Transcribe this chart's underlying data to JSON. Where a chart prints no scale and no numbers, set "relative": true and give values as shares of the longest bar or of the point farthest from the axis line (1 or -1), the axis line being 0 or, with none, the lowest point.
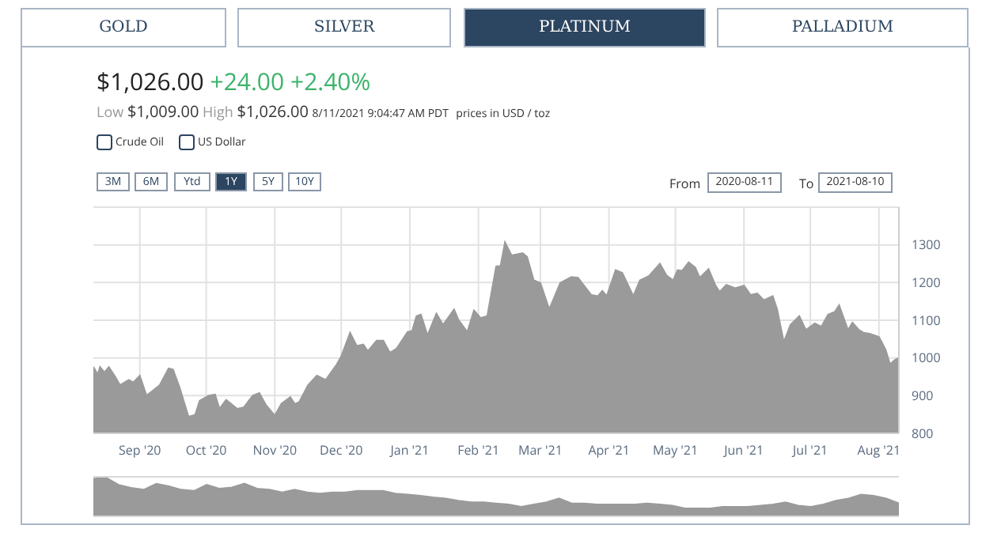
{
  "chart_data": [
    {
      "type": "area",
      "color": "#9a9a9a",
      "grid": true,
      "annotations": [
        "GOLD",
        "SILVER",
        "PLATINUM",
        "PALLADIUM",
        "$1,026.00",
        "+24.00 +2.40%",
        "Low",
        "$1,009.00",
        "High",
        "$1,026.00",
        "8/11/2021 9:04:47 AM PDT",
        "prices in USD / toz",
        "Crude Oil",
        "US Dollar",
        "3M",
        "6M",
        "Ytd",
        "1Y",
        "5Y",
        "10Y",
        "From",
        "2020-08-11",
        "To",
        "2021-08-10"
      ],
      "xlim": [
        "2020-08-11",
        "2021-08-10"
      ],
      "xticks": [
        {
          "value": "2020-09-01",
          "label": "Sep '20"
        },
        {
          "value": "2020-10-01",
          "label": "Oct '20"
        },
        {
          "value": "2020-11-01",
          "label": "Nov '20"
        },
        {
          "value": "2020-12-01",
          "label": "Dec '20"
        },
        {
          "value": "2021-01-01",
          "label": "Jan '21"
        },
        {
          "value": "2021-02-01",
          "label": "Feb '21"
        },
        {
          "value": "2021-03-01",
          "label": "Mar '21"
        },
        {
          "value": "2021-04-01",
          "label": "Apr '21"
        },
        {
          "value": "2021-05-01",
          "label": "May '21"
        },
        {
          "value": "2021-06-01",
          "label": "Jun '21"
        },
        {
          "value": "2021-07-01",
          "label": "Jul '21"
        },
        {
          "value": "2021-08-01",
          "label": "Aug '21"
        }
      ],
      "ylim": [
        800,
        1400
      ],
      "yticks": [
        800,
        900,
        1000,
        1100,
        1200,
        1300,
        {
          "value": 1400,
          "label": null
        }
      ],
      "x": [
        "2020-08-11",
        "2020-08-13",
        "2020-08-14",
        "2020-08-16",
        "2020-08-18",
        "2020-08-21",
        "2020-08-23",
        "2020-08-27",
        "2020-08-29",
        "2020-09-01",
        "2020-09-04",
        "2020-09-07",
        "2020-09-10",
        "2020-09-14",
        "2020-09-16",
        "2020-09-19",
        "2020-09-23",
        "2020-09-26",
        "2020-09-28",
        "2020-10-02",
        "2020-10-05",
        "2020-10-07",
        "2020-10-10",
        "2020-10-15",
        "2020-10-18",
        "2020-10-22",
        "2020-10-25",
        "2020-10-28",
        "2020-11-01",
        "2020-11-04",
        "2020-11-08",
        "2020-11-10",
        "2020-11-12",
        "2020-11-16",
        "2020-11-20",
        "2020-11-24",
        "2020-11-29",
        "2020-12-01",
        "2020-12-05",
        "2020-12-08",
        "2020-12-11",
        "2020-12-13",
        "2020-12-17",
        "2020-12-20",
        "2020-12-23",
        "2020-12-26",
        "2020-12-31",
        "2021-01-02",
        "2021-01-04",
        "2021-01-06",
        "2021-01-09",
        "2021-01-13",
        "2021-01-16",
        "2021-01-21",
        "2021-01-23",
        "2021-01-27",
        "2021-01-30",
        "2021-02-02",
        "2021-02-05",
        "2021-02-09",
        "2021-02-11",
        "2021-02-13",
        "2021-02-16",
        "2021-02-21",
        "2021-02-23",
        "2021-02-26",
        "2021-03-01",
        "2021-03-05",
        "2021-03-10",
        "2021-03-15",
        "2021-03-18",
        "2021-03-24",
        "2021-03-27",
        "2021-03-29",
        "2021-03-31",
        "2021-04-04",
        "2021-04-07",
        "2021-04-12",
        "2021-04-15",
        "2021-04-19",
        "2021-04-24",
        "2021-04-27",
        "2021-04-30",
        "2021-05-02",
        "2021-05-04",
        "2021-05-07",
        "2021-05-10",
        "2021-05-12",
        "2021-05-16",
        "2021-05-19",
        "2021-05-21",
        "2021-05-24",
        "2021-05-28",
        "2021-06-01",
        "2021-06-04",
        "2021-06-07",
        "2021-06-10",
        "2021-06-14",
        "2021-06-16",
        "2021-06-19",
        "2021-06-22",
        "2021-06-26",
        "2021-06-29",
        "2021-07-03",
        "2021-07-06",
        "2021-07-09",
        "2021-07-12",
        "2021-07-14",
        "2021-07-18",
        "2021-07-20",
        "2021-07-23",
        "2021-07-25",
        "2021-07-28",
        "2021-08-01",
        "2021-08-04",
        "2021-08-06",
        "2021-08-08",
        "2021-08-10"
      ],
      "values": [
        976,
        956,
        976,
        962,
        976,
        949,
        928,
        942,
        935,
        953,
        900,
        914,
        928,
        972,
        969,
        921,
        844,
        849,
        886,
        900,
        903,
        865,
        889,
        865,
        869,
        900,
        907,
        875,
        847,
        879,
        896,
        878,
        883,
        928,
        953,
        942,
        983,
        1004,
        1067,
        1032,
        1036,
        1018,
        1046,
        1046,
        1014,
        1025,
        1069,
        1071,
        1111,
        1115,
        1060,
        1118,
        1088,
        1129,
        1101,
        1069,
        1126,
        1106,
        1111,
        1243,
        1244,
        1307,
        1272,
        1278,
        1268,
        1206,
        1199,
        1129,
        1199,
        1215,
        1213,
        1167,
        1164,
        1178,
        1164,
        1233,
        1226,
        1164,
        1206,
        1217,
        1250,
        1219,
        1206,
        1233,
        1231,
        1254,
        1240,
        1213,
        1236,
        1194,
        1175,
        1194,
        1185,
        1192,
        1167,
        1171,
        1153,
        1164,
        1129,
        1042,
        1088,
        1111,
        1074,
        1092,
        1083,
        1115,
        1122,
        1140,
        1074,
        1094,
        1074,
        1067,
        1064,
        1056,
        1022,
        983,
        994,
        1000
      ]
    },
    {
      "type": "area",
      "color": "#9a9a9a",
      "relative": true,
      "categories": [
        null,
        null,
        null,
        null,
        null,
        null,
        null,
        null,
        null,
        null,
        null,
        null,
        null,
        null,
        null,
        null,
        null,
        null,
        null,
        null,
        null,
        null,
        null,
        null,
        null,
        null,
        null,
        null,
        null,
        null,
        null,
        null,
        null,
        null,
        null,
        null,
        null,
        null,
        null,
        null,
        null,
        null,
        null,
        null,
        null,
        null,
        null,
        null,
        null,
        null,
        null,
        null,
        null,
        null,
        null,
        null,
        null,
        null,
        null,
        null,
        null,
        null,
        null,
        null,
        null
      ],
      "values": [
        0.97,
        1,
        0.81,
        0.73,
        0.68,
        0.84,
        0.77,
        0.68,
        0.65,
        0.81,
        0.71,
        0.74,
        0.84,
        0.71,
        0.68,
        0.61,
        0.68,
        0.61,
        0.58,
        0.61,
        0.61,
        0.65,
        0.65,
        0.65,
        0.58,
        0.55,
        0.52,
        0.48,
        0.45,
        0.39,
        0.35,
        0.35,
        0.32,
        0.29,
        0.23,
        0.29,
        0.35,
        0.45,
        0.32,
        0.32,
        0.29,
        0.29,
        0.29,
        0.29,
        0.32,
        0.29,
        0.26,
        0.19,
        0.19,
        0.19,
        0.23,
        0.23,
        0.23,
        0.26,
        0.29,
        0.35,
        0.26,
        0.23,
        0.29,
        0.39,
        0.45,
        0.55,
        0.52,
        0.45,
        0.32
      ]
    }
  ]
}
